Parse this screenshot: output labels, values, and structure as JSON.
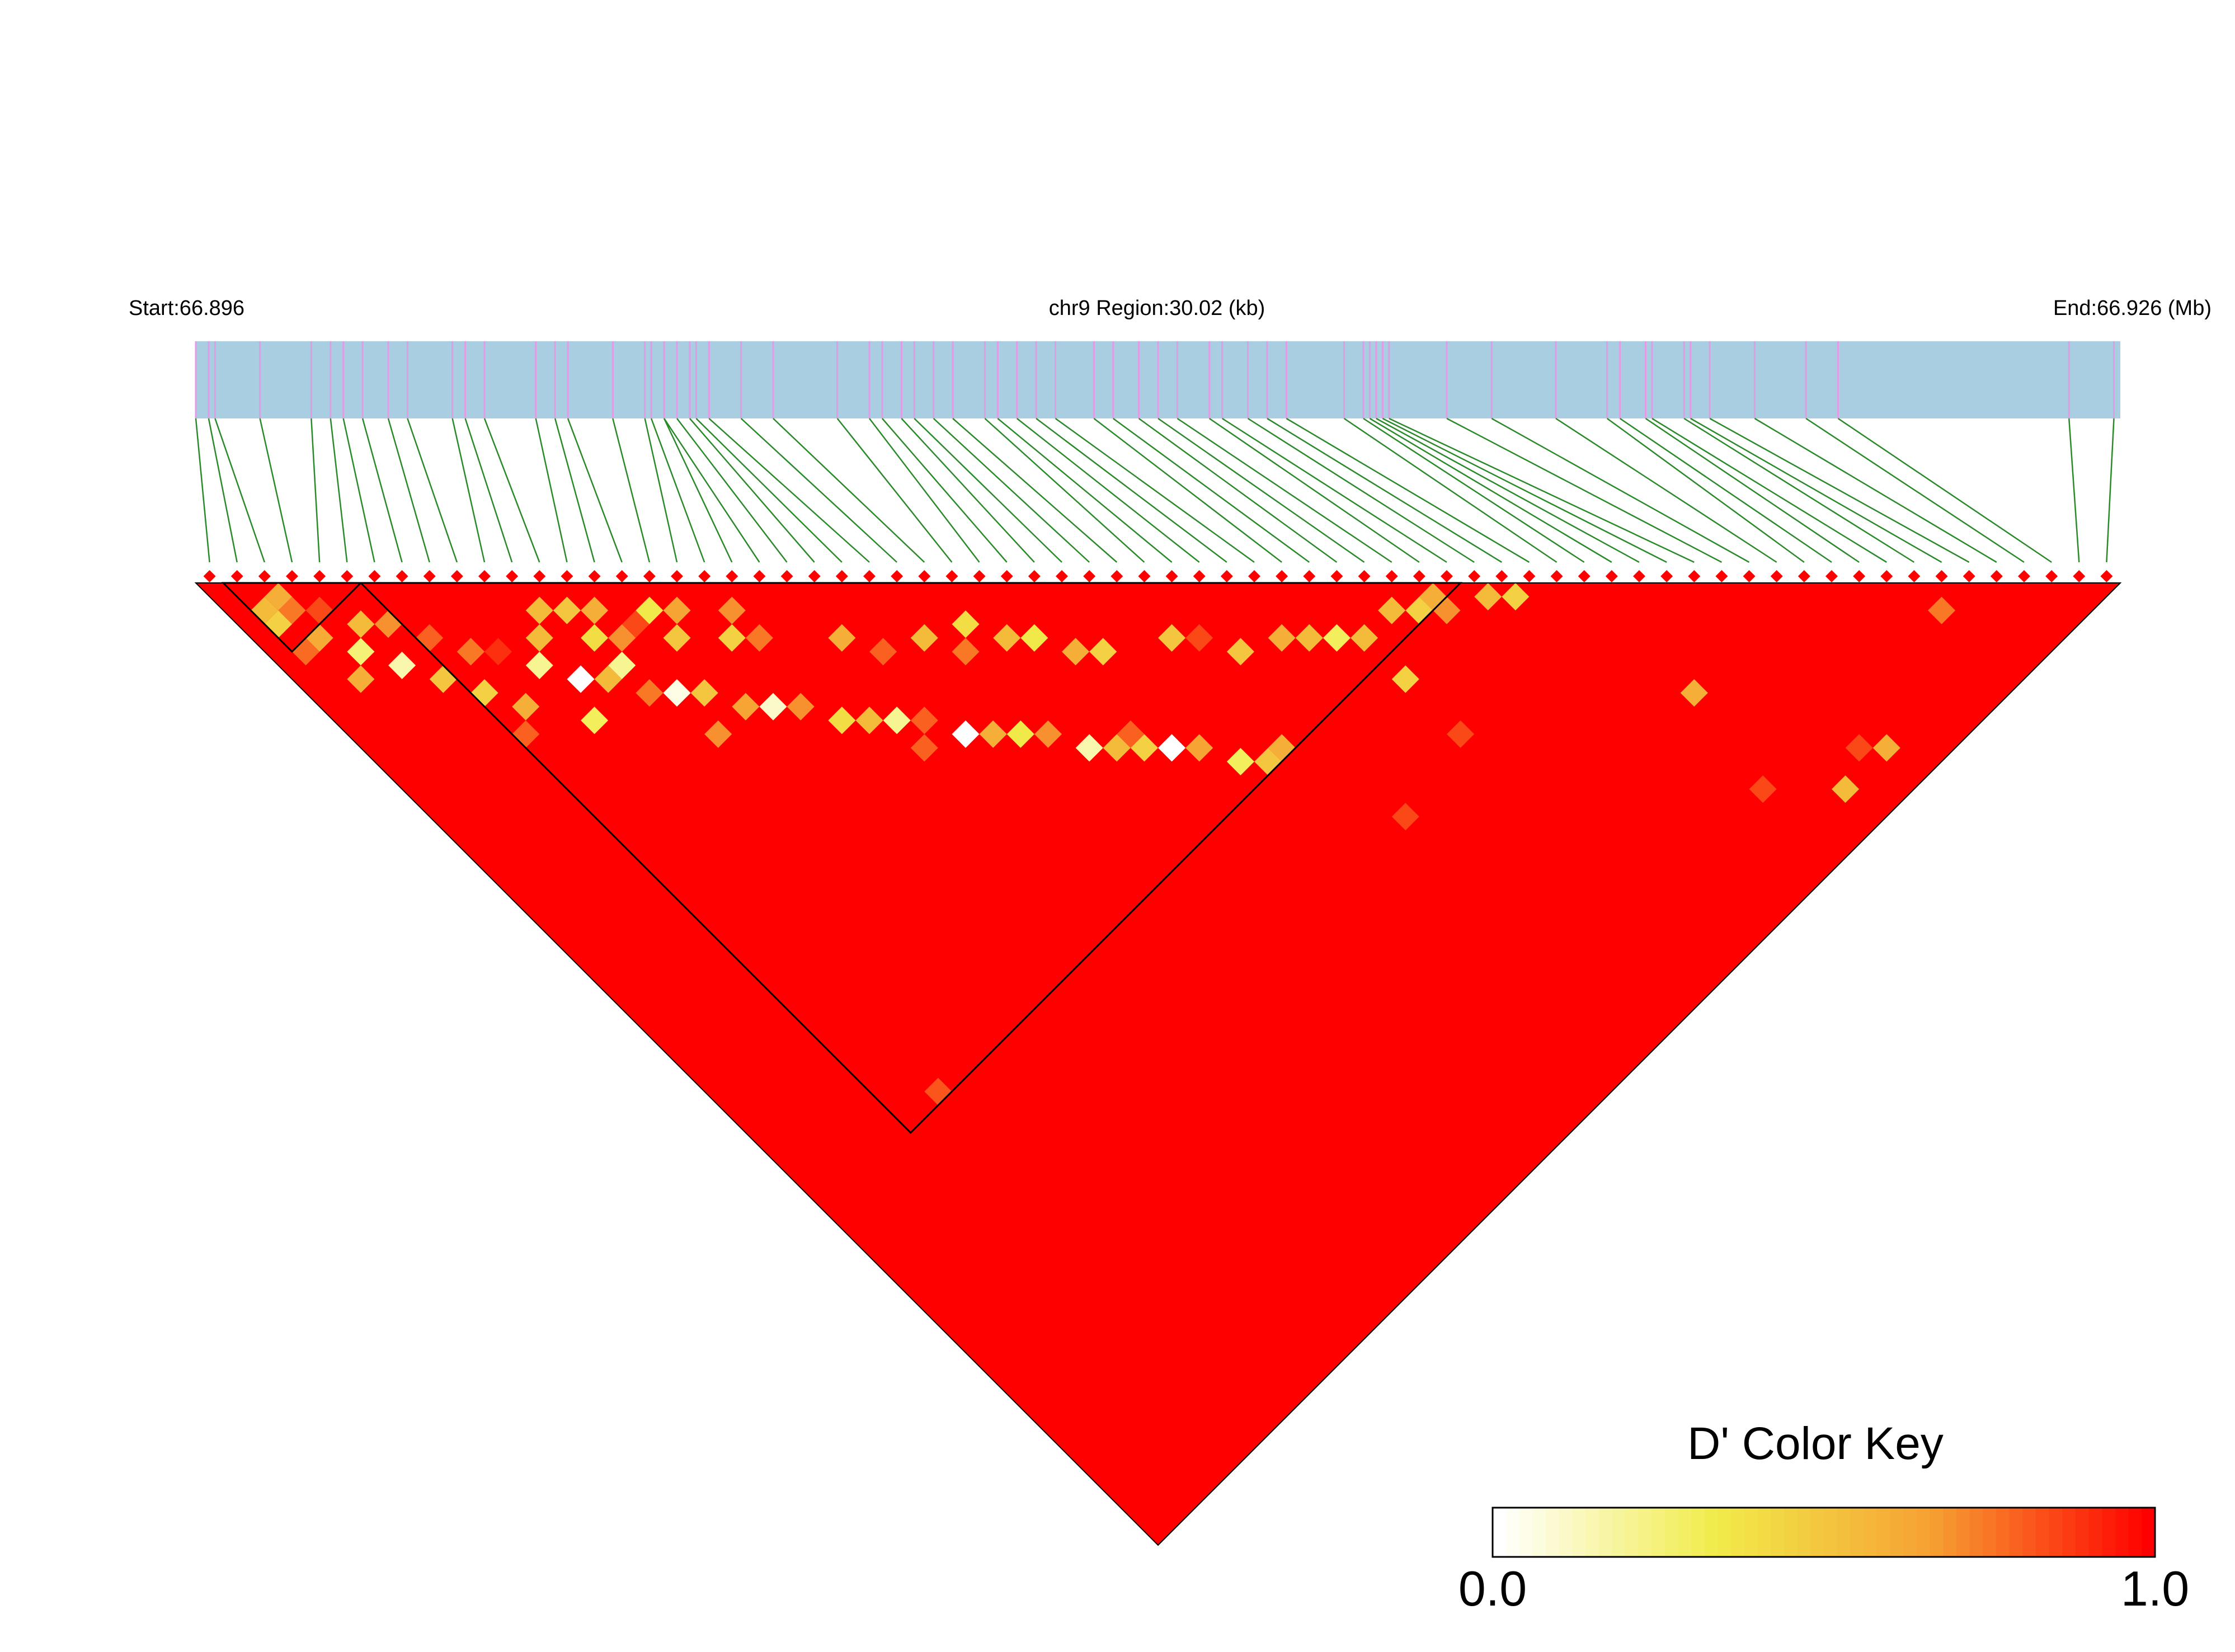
{
  "chart_data": {
    "type": "heatmap",
    "subtype": "ld-triangle",
    "title": "",
    "header": {
      "start_label": "Start:66.896",
      "region_label": "chr9 Region:30.02 (kb)",
      "end_label": "End:66.926 (Mb)"
    },
    "region": {
      "chromosome": "chr9",
      "start_mb": 66.896,
      "end_mb": 66.926,
      "length_kb": 30.02
    },
    "snp_count": 70,
    "snp_positions_mb": [
      66.896,
      66.8962,
      66.8963,
      66.897,
      66.8978,
      66.8981,
      66.8983,
      66.8986,
      66.899,
      66.8993,
      66.9,
      66.9002,
      66.9005,
      66.9013,
      66.9016,
      66.9018,
      66.9025,
      66.903,
      66.9031,
      66.9033,
      66.9033,
      66.9035,
      66.9037,
      66.9038,
      66.904,
      66.9045,
      66.905,
      66.906,
      66.9065,
      66.9067,
      66.907,
      66.9072,
      66.9075,
      66.9078,
      66.9083,
      66.9085,
      66.9088,
      66.9091,
      66.9094,
      66.91,
      66.9103,
      66.9107,
      66.911,
      66.9113,
      66.9118,
      66.912,
      66.9124,
      66.9127,
      66.913,
      66.9139,
      66.9142,
      66.9143,
      66.9144,
      66.9145,
      66.9146,
      66.9155,
      66.9162,
      66.9172,
      66.918,
      66.9182,
      66.9186,
      66.9187,
      66.9192,
      66.9193,
      66.9196,
      66.9203,
      66.9211,
      66.9216,
      66.9252,
      66.9259
    ],
    "ld_blocks_snp_ranges": [
      [
        1,
        5
      ],
      [
        6,
        45
      ]
    ],
    "d_prime_default": 1.0,
    "d_prime_cells": [
      {
        "i": 1,
        "j": 3,
        "value": 0.55
      },
      {
        "i": 2,
        "j": 4,
        "value": 0.75
      },
      {
        "i": 1,
        "j": 4,
        "value": 0.45
      },
      {
        "i": 3,
        "j": 5,
        "value": 0.85
      },
      {
        "i": 2,
        "j": 6,
        "value": 0.62
      },
      {
        "i": 1,
        "j": 6,
        "value": 0.78
      },
      {
        "i": 4,
        "j": 7,
        "value": 0.55
      },
      {
        "i": 3,
        "j": 8,
        "value": 0.25
      },
      {
        "i": 5,
        "j": 8,
        "value": 0.7
      },
      {
        "i": 2,
        "j": 9,
        "value": 0.6
      },
      {
        "i": 4,
        "j": 10,
        "value": 0.15
      },
      {
        "i": 6,
        "j": 10,
        "value": 0.8
      },
      {
        "i": 5,
        "j": 12,
        "value": 0.5
      },
      {
        "i": 7,
        "j": 12,
        "value": 0.35
      },
      {
        "i": 8,
        "j": 13,
        "value": 0.9
      },
      {
        "i": 6,
        "j": 14,
        "value": 0.45
      },
      {
        "i": 9,
        "j": 15,
        "value": 0.2
      },
      {
        "i": 7,
        "j": 16,
        "value": 0.6
      },
      {
        "i": 10,
        "j": 17,
        "value": 0.0
      },
      {
        "i": 11,
        "j": 18,
        "value": 0.55
      },
      {
        "i": 9,
        "j": 19,
        "value": 0.3
      },
      {
        "i": 12,
        "j": 20,
        "value": 0.75
      },
      {
        "i": 13,
        "j": 21,
        "value": 0.05
      },
      {
        "i": 14,
        "j": 22,
        "value": 0.5
      },
      {
        "i": 15,
        "j": 24,
        "value": 0.65
      },
      {
        "i": 16,
        "j": 25,
        "value": 0.1
      },
      {
        "i": 17,
        "j": 26,
        "value": 0.7
      },
      {
        "i": 18,
        "j": 28,
        "value": 0.4
      },
      {
        "i": 19,
        "j": 29,
        "value": 0.55
      },
      {
        "i": 20,
        "j": 30,
        "value": 0.2
      },
      {
        "i": 21,
        "j": 31,
        "value": 0.8
      },
      {
        "i": 22,
        "j": 33,
        "value": 0.0
      },
      {
        "i": 23,
        "j": 34,
        "value": 0.6
      },
      {
        "i": 24,
        "j": 35,
        "value": 0.35
      },
      {
        "i": 25,
        "j": 36,
        "value": 0.7
      },
      {
        "i": 26,
        "j": 38,
        "value": 0.15
      },
      {
        "i": 27,
        "j": 39,
        "value": 0.55
      },
      {
        "i": 28,
        "j": 40,
        "value": 0.45
      },
      {
        "i": 29,
        "j": 41,
        "value": 0.0
      },
      {
        "i": 30,
        "j": 42,
        "value": 0.65
      },
      {
        "i": 31,
        "j": 44,
        "value": 0.3
      },
      {
        "i": 32,
        "j": 45,
        "value": 0.5
      },
      {
        "i": 12,
        "j": 16,
        "value": 0.4
      },
      {
        "i": 13,
        "j": 17,
        "value": 0.7
      },
      {
        "i": 17,
        "j": 21,
        "value": 0.45
      },
      {
        "i": 21,
        "j": 25,
        "value": 0.6
      },
      {
        "i": 24,
        "j": 28,
        "value": 0.55
      },
      {
        "i": 28,
        "j": 32,
        "value": 0.35
      },
      {
        "i": 33,
        "j": 37,
        "value": 0.5
      },
      {
        "i": 37,
        "j": 41,
        "value": 0.6
      },
      {
        "i": 40,
        "j": 44,
        "value": 0.55
      },
      {
        "i": 43,
        "j": 45,
        "value": 0.45
      },
      {
        "i": 18,
        "j": 20,
        "value": 0.7
      },
      {
        "i": 26,
        "j": 29,
        "value": 0.4
      },
      {
        "i": 35,
        "j": 40,
        "value": 0.5
      },
      {
        "i": 39,
        "j": 43,
        "value": 0.3
      },
      {
        "i": 44,
        "j": 45,
        "value": 0.6
      },
      {
        "i": 10,
        "j": 14,
        "value": 0.55
      },
      {
        "i": 15,
        "j": 19,
        "value": 0.5
      },
      {
        "i": 30,
        "j": 35,
        "value": 0.45
      },
      {
        "i": 13,
        "j": 15,
        "value": 0.6
      },
      {
        "i": 16,
        "j": 18,
        "value": 0.65
      },
      {
        "i": 27,
        "j": 31,
        "value": 0.55
      },
      {
        "i": 12,
        "j": 18,
        "value": 0.2
      },
      {
        "i": 14,
        "j": 17,
        "value": 0.85
      },
      {
        "i": 15,
        "j": 17,
        "value": 0.35
      },
      {
        "i": 11,
        "j": 13,
        "value": 0.55
      },
      {
        "i": 12,
        "j": 14,
        "value": 0.5
      },
      {
        "i": 18,
        "j": 22,
        "value": 0.75
      },
      {
        "i": 22,
        "j": 27,
        "value": 0.8
      },
      {
        "i": 25,
        "j": 30,
        "value": 0.75
      },
      {
        "i": 20,
        "j": 32,
        "value": 0.8
      },
      {
        "i": 29,
        "j": 34,
        "value": 0.6
      },
      {
        "i": 34,
        "j": 38,
        "value": 0.85
      },
      {
        "i": 33,
        "j": 45,
        "value": 0.6
      },
      {
        "i": 38,
        "j": 42,
        "value": 0.55
      },
      {
        "i": 42,
        "j": 44,
        "value": 0.55
      },
      {
        "i": 44,
        "j": 46,
        "value": 0.7
      },
      {
        "i": 46,
        "j": 47,
        "value": 0.55
      },
      {
        "i": 47,
        "j": 48,
        "value": 0.45
      },
      {
        "i": 7,
        "j": 12,
        "value": 0.75
      },
      {
        "i": 2,
        "j": 3,
        "value": 0.6
      },
      {
        "i": 28,
        "j": 39,
        "value": 0.8
      },
      {
        "i": 6,
        "j": 17,
        "value": 0.8
      },
      {
        "i": 40,
        "j": 51,
        "value": 0.85
      },
      {
        "i": 49,
        "j": 64,
        "value": 0.85
      },
      {
        "i": 52,
        "j": 67,
        "value": 0.55
      },
      {
        "i": 54,
        "j": 66,
        "value": 0.85
      },
      {
        "i": 55,
        "j": 67,
        "value": 0.6
      },
      {
        "i": 35,
        "j": 52,
        "value": 0.85
      },
      {
        "i": 50,
        "j": 58,
        "value": 0.6
      },
      {
        "i": 8,
        "j": 45,
        "value": 0.82
      },
      {
        "i": 40,
        "j": 47,
        "value": 0.45
      },
      {
        "i": 62,
        "j": 64,
        "value": 0.75
      },
      {
        "i": 13,
        "j": 24,
        "value": 0.7
      }
    ],
    "color_key": {
      "title": "D' Color Key",
      "min_label": "0.0",
      "max_label": "1.0",
      "min": 0.0,
      "max": 1.0,
      "stops": [
        "#ffffff",
        "#f1ec4a",
        "#f6a033",
        "#ff0000"
      ]
    },
    "colors": {
      "region_bar": "#a9cde1",
      "snp_tick": "#e29be4",
      "connector_line": "#2a8a2a",
      "marker": "#ff0000",
      "block_outline": "#000000"
    }
  }
}
